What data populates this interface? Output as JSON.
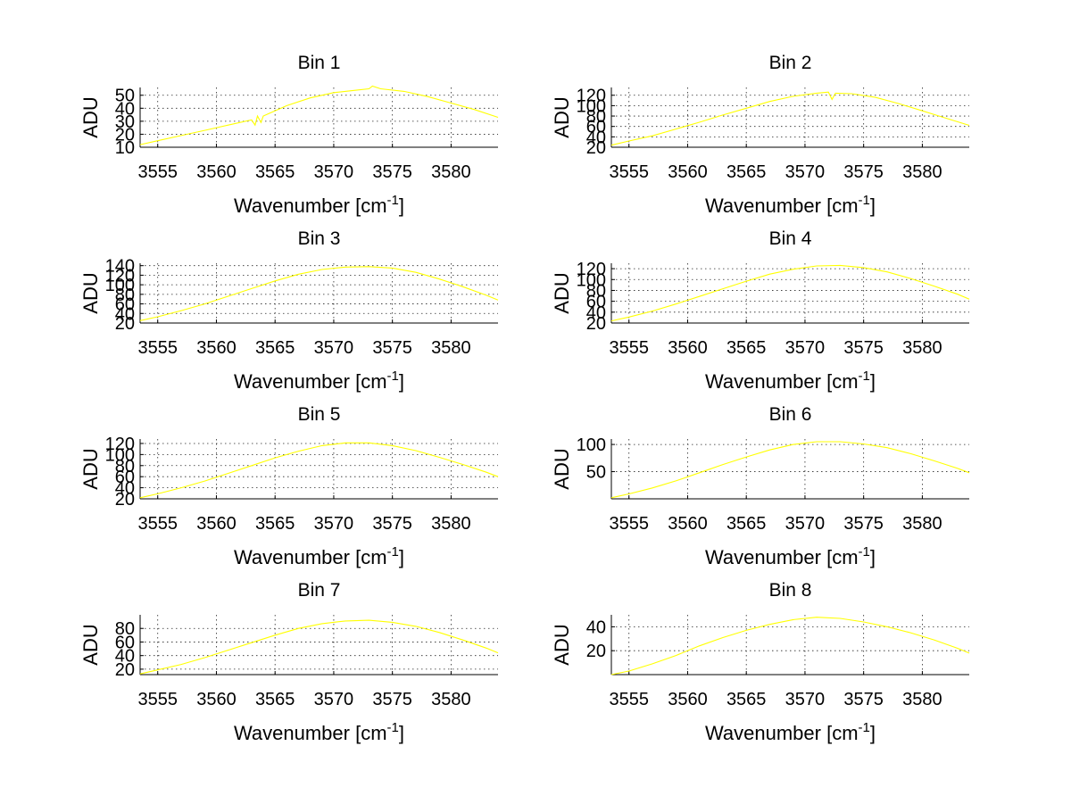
{
  "chart_data": [
    {
      "type": "line",
      "title": "Bin 1",
      "xlabel": "Wavenumber [cm",
      "xlabel_sup": "-1",
      "xlabel_close": "]",
      "ylabel": "ADU",
      "xlim": [
        3553.5,
        3584
      ],
      "ylim": [
        10,
        56
      ],
      "xticks": [
        3555,
        3560,
        3565,
        3570,
        3575,
        3580
      ],
      "yticks": [
        10,
        20,
        30,
        40,
        50
      ],
      "ytick_labels": [
        "10",
        "20",
        "30",
        "40",
        "50"
      ],
      "grid": true,
      "color": "#ffff00",
      "x": [
        3553.5,
        3555,
        3557,
        3559,
        3561,
        3563,
        3563.3,
        3563.5,
        3563.8,
        3564,
        3566,
        3568,
        3570,
        3572,
        3573,
        3573.3,
        3574,
        3576,
        3578,
        3580,
        3582,
        3584
      ],
      "y": [
        12,
        15,
        19,
        23,
        27,
        31,
        27,
        34,
        29,
        34,
        42,
        48,
        52,
        54,
        55,
        57,
        55,
        53,
        49,
        44,
        39,
        33
      ]
    },
    {
      "type": "line",
      "title": "Bin 2",
      "xlabel": "Wavenumber [cm",
      "xlabel_sup": "-1",
      "xlabel_close": "]",
      "ylabel": "ADU",
      "xlim": [
        3553.5,
        3584
      ],
      "ylim": [
        20,
        135
      ],
      "xticks": [
        3555,
        3560,
        3565,
        3570,
        3575,
        3580
      ],
      "yticks": [
        20,
        40,
        60,
        80,
        100,
        120
      ],
      "ytick_labels": [
        "20",
        "40",
        "60",
        "80",
        "100",
        "120"
      ],
      "grid": true,
      "color": "#ffff00",
      "x": [
        3553.5,
        3555,
        3557,
        3559,
        3561,
        3563,
        3565,
        3567,
        3569,
        3571,
        3572,
        3572.3,
        3572.6,
        3574,
        3576,
        3578,
        3580,
        3582,
        3584
      ],
      "y": [
        24,
        32,
        42,
        55,
        68,
        82,
        95,
        108,
        118,
        124,
        126,
        112,
        124,
        123,
        116,
        104,
        90,
        76,
        62
      ]
    },
    {
      "type": "line",
      "title": "Bin 3",
      "xlabel": "Wavenumber [cm",
      "xlabel_sup": "-1",
      "xlabel_close": "]",
      "ylabel": "ADU",
      "xlim": [
        3553.5,
        3584
      ],
      "ylim": [
        20,
        145
      ],
      "xticks": [
        3555,
        3560,
        3565,
        3570,
        3575,
        3580
      ],
      "yticks": [
        20,
        40,
        60,
        80,
        100,
        120,
        140
      ],
      "ytick_labels": [
        "20",
        "40",
        "60",
        "80",
        "100",
        "120",
        "140"
      ],
      "grid": true,
      "color": "#ffff00",
      "x": [
        3553.5,
        3555,
        3557,
        3559,
        3561,
        3563,
        3565,
        3567,
        3569,
        3571,
        3573,
        3575,
        3577,
        3579,
        3581,
        3583,
        3584
      ],
      "y": [
        25,
        33,
        46,
        60,
        76,
        92,
        108,
        122,
        132,
        137,
        138,
        135,
        126,
        112,
        96,
        78,
        68
      ]
    },
    {
      "type": "line",
      "title": "Bin 4",
      "xlabel": "Wavenumber [cm",
      "xlabel_sup": "-1",
      "xlabel_close": "]",
      "ylabel": "ADU",
      "xlim": [
        3553.5,
        3584
      ],
      "ylim": [
        20,
        130
      ],
      "xticks": [
        3555,
        3560,
        3565,
        3570,
        3575,
        3580
      ],
      "yticks": [
        20,
        40,
        60,
        80,
        100,
        120
      ],
      "ytick_labels": [
        "20",
        "40",
        "60",
        "80",
        "100",
        "120"
      ],
      "grid": true,
      "color": "#ffff00",
      "x": [
        3553.5,
        3555,
        3557,
        3559,
        3561,
        3563,
        3565,
        3567,
        3569,
        3571,
        3573,
        3575,
        3577,
        3579,
        3581,
        3583,
        3584
      ],
      "y": [
        24,
        31,
        42,
        55,
        69,
        83,
        97,
        110,
        119,
        125,
        126,
        122,
        114,
        102,
        88,
        73,
        64
      ]
    },
    {
      "type": "line",
      "title": "Bin 5",
      "xlabel": "Wavenumber [cm",
      "xlabel_sup": "-1",
      "xlabel_close": "]",
      "ylabel": "ADU",
      "xlim": [
        3553.5,
        3584
      ],
      "ylim": [
        20,
        128
      ],
      "xticks": [
        3555,
        3560,
        3565,
        3570,
        3575,
        3580
      ],
      "yticks": [
        20,
        40,
        60,
        80,
        100,
        120
      ],
      "ytick_labels": [
        "20",
        "40",
        "60",
        "80",
        "100",
        "120"
      ],
      "grid": true,
      "color": "#ffff00",
      "x": [
        3553.5,
        3555,
        3557,
        3559,
        3561,
        3563,
        3565,
        3567,
        3569,
        3571,
        3573,
        3575,
        3577,
        3579,
        3581,
        3583,
        3584
      ],
      "y": [
        22,
        29,
        40,
        52,
        66,
        80,
        94,
        106,
        116,
        121,
        121,
        116,
        107,
        95,
        82,
        68,
        60
      ]
    },
    {
      "type": "line",
      "title": "Bin 6",
      "xlabel": "Wavenumber [cm",
      "xlabel_sup": "-1",
      "xlabel_close": "]",
      "ylabel": "ADU",
      "xlim": [
        3553.5,
        3584
      ],
      "ylim": [
        0,
        110
      ],
      "xticks": [
        3555,
        3560,
        3565,
        3570,
        3575,
        3580
      ],
      "yticks": [
        50,
        100
      ],
      "ytick_labels": [
        "50",
        "100"
      ],
      "grid": true,
      "color": "#ffff00",
      "x": [
        3553.5,
        3555,
        3557,
        3559,
        3561,
        3563,
        3565,
        3567,
        3569,
        3571,
        3573,
        3575,
        3577,
        3579,
        3581,
        3583,
        3584
      ],
      "y": [
        2,
        9,
        20,
        33,
        48,
        63,
        77,
        90,
        100,
        105,
        105,
        101,
        94,
        83,
        70,
        56,
        48
      ]
    },
    {
      "type": "line",
      "title": "Bin 7",
      "xlabel": "Wavenumber [cm",
      "xlabel_sup": "-1",
      "xlabel_close": "]",
      "ylabel": "ADU",
      "xlim": [
        3553.5,
        3584
      ],
      "ylim": [
        12,
        100
      ],
      "xticks": [
        3555,
        3560,
        3565,
        3570,
        3575,
        3580
      ],
      "yticks": [
        20,
        40,
        60,
        80
      ],
      "ytick_labels": [
        "20",
        "40",
        "60",
        "80"
      ],
      "grid": true,
      "color": "#ffff00",
      "x": [
        3553.5,
        3555,
        3557,
        3559,
        3561,
        3563,
        3565,
        3567,
        3569,
        3571,
        3573,
        3575,
        3577,
        3579,
        3581,
        3583,
        3584
      ],
      "y": [
        13,
        19,
        27,
        37,
        48,
        59,
        70,
        80,
        87,
        91,
        92,
        89,
        83,
        74,
        63,
        51,
        44
      ]
    },
    {
      "type": "line",
      "title": "Bin 8",
      "xlabel": "Wavenumber [cm",
      "xlabel_sup": "-1",
      "xlabel_close": "]",
      "ylabel": "ADU",
      "xlim": [
        3553.5,
        3584
      ],
      "ylim": [
        0,
        50
      ],
      "xticks": [
        3555,
        3560,
        3565,
        3570,
        3575,
        3580
      ],
      "yticks": [
        20,
        40
      ],
      "ytick_labels": [
        "20",
        "40"
      ],
      "grid": true,
      "color": "#ffff00",
      "x": [
        3553.5,
        3555,
        3557,
        3559,
        3561,
        3563,
        3565,
        3567,
        3569,
        3571,
        3573,
        3575,
        3577,
        3579,
        3581,
        3583,
        3584
      ],
      "y": [
        0,
        3,
        9,
        16,
        24,
        31,
        37,
        42,
        46,
        48,
        47,
        44,
        40,
        35,
        29,
        22,
        18
      ]
    }
  ]
}
